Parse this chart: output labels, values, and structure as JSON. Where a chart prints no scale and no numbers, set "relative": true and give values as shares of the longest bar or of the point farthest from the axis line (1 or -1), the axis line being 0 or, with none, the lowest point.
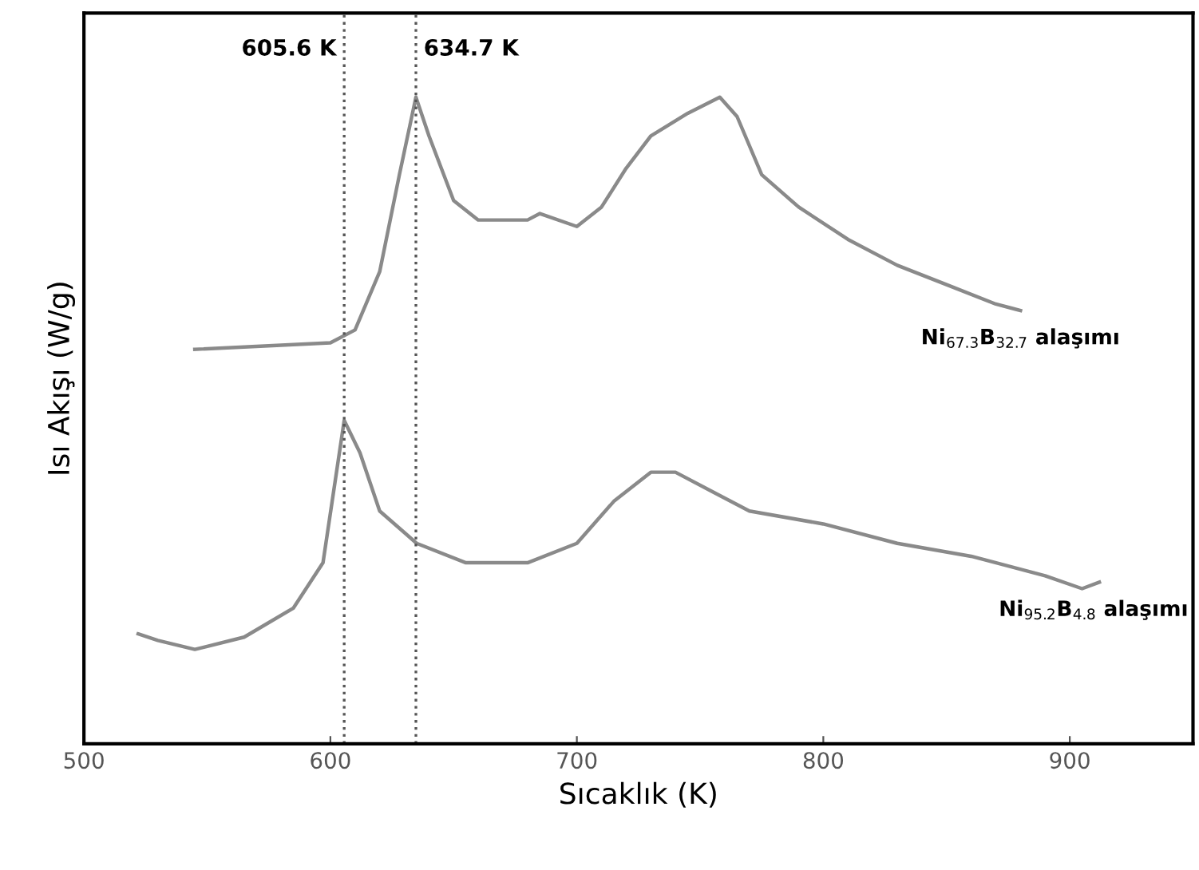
{
  "chart_data": {
    "type": "line",
    "xlabel": "Sıcaklık (K)",
    "ylabel": "Isı Akışı (W/g)",
    "relative": true,
    "xlim": [
      500,
      950
    ],
    "xticks": [
      500,
      600,
      700,
      800,
      900
    ],
    "tick_labels": "x",
    "grid": false,
    "legend": false,
    "line_style": "solid",
    "marker": "none",
    "series": [
      {
        "name": "Ni$_{67.3}$B$_{32.7}$ alaşımı",
        "color": "#8a8a8a",
        "x": [
          545,
          600,
          610,
          620,
          628,
          634.7,
          640,
          650,
          660,
          680,
          685,
          700,
          710,
          720,
          730,
          745,
          758,
          765,
          775,
          790,
          810,
          830,
          850,
          870,
          880
        ],
        "values": [
          0.61,
          0.62,
          0.64,
          0.73,
          0.88,
          1.0,
          0.94,
          0.84,
          0.81,
          0.81,
          0.82,
          0.8,
          0.83,
          0.89,
          0.94,
          0.975,
          1.0,
          0.97,
          0.88,
          0.83,
          0.78,
          0.74,
          0.71,
          0.68,
          0.67
        ]
      },
      {
        "name": "Ni$_{95.2}$B$_{4.8}$ alaşımı",
        "color": "#8a8a8a",
        "x": [
          522,
          530,
          545,
          565,
          585,
          597,
          605.6,
          612,
          620,
          635,
          655,
          680,
          700,
          715,
          730,
          740,
          755,
          770,
          800,
          830,
          860,
          890,
          905,
          912
        ],
        "values": [
          0.17,
          0.16,
          0.146,
          0.165,
          0.21,
          0.28,
          0.5,
          0.45,
          0.36,
          0.31,
          0.28,
          0.28,
          0.31,
          0.375,
          0.42,
          0.42,
          0.39,
          0.36,
          0.34,
          0.31,
          0.29,
          0.26,
          0.24,
          0.25
        ]
      }
    ],
    "ref_lines": [
      {
        "axis": "x",
        "value": 605.6,
        "label": "605.6 K",
        "line_style": "dotted",
        "color": "#555555"
      },
      {
        "axis": "x",
        "value": 634.7,
        "label": "634.7 K",
        "line_style": "dotted",
        "color": "#555555"
      }
    ]
  }
}
